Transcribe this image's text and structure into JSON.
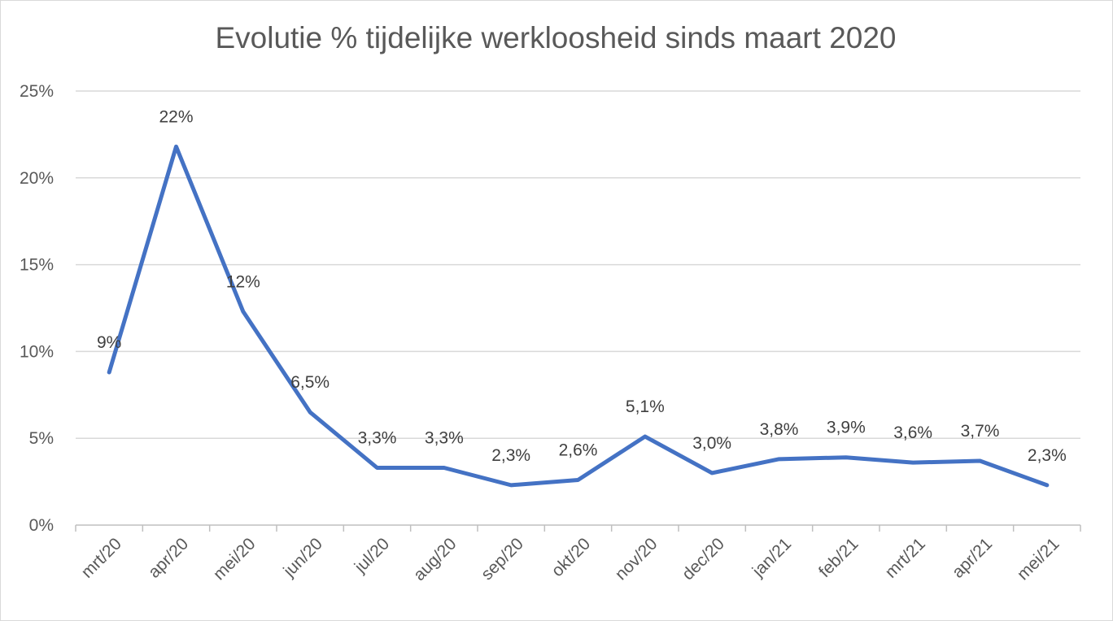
{
  "chart_data": {
    "type": "line",
    "title": "Evolutie % tijdelijke werkloosheid sinds maart 2020",
    "xlabel": "",
    "ylabel": "",
    "categories": [
      "mrt/20",
      "apr/20",
      "mei/20",
      "jun/20",
      "jul/20",
      "aug/20",
      "sep/20",
      "okt/20",
      "nov/20",
      "dec/20",
      "jan/21",
      "feb/21",
      "mrt/21",
      "apr/21",
      "mei/21"
    ],
    "series": [
      {
        "values": [
          8.8,
          21.8,
          12.3,
          6.5,
          3.3,
          3.3,
          2.3,
          2.6,
          5.1,
          3.0,
          3.8,
          3.9,
          3.6,
          3.7,
          2.3
        ],
        "labels": [
          "9%",
          "22%",
          "12%",
          "6,5%",
          "3,3%",
          "3,3%",
          "2,3%",
          "2,6%",
          "5,1%",
          "3,0%",
          "3,8%",
          "3,9%",
          "3,6%",
          "3,7%",
          "2,3%"
        ],
        "color": "#4472c4"
      }
    ],
    "yticks": [
      0,
      5,
      10,
      15,
      20,
      25
    ],
    "ytick_labels": [
      "0%",
      "5%",
      "10%",
      "15%",
      "20%",
      "25%"
    ],
    "ylim": [
      0,
      25
    ],
    "grid": true,
    "legend": "none",
    "colors": {
      "line": "#4472c4",
      "grid": "#d9d9d9",
      "axis": "#bfbfbf"
    }
  }
}
